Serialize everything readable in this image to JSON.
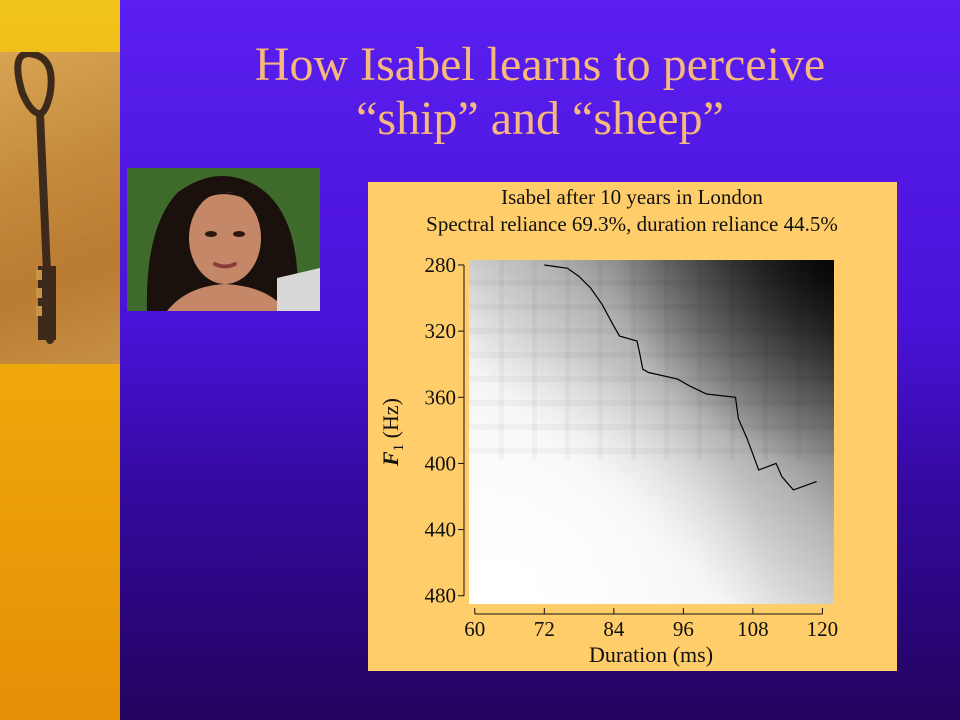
{
  "slide": {
    "title_line1": "How Isabel learns to perceive",
    "title_line2": "“ship” and “sheep”"
  },
  "images": {
    "left_image": "key-icon",
    "portrait": "person-portrait"
  },
  "colors": {
    "background": "#4a12d8",
    "left_strip": "#efa80c",
    "title": "#f6b87c",
    "chart_panel": "#ffcd6a"
  },
  "chart_data": {
    "type": "heatmap",
    "title_line1": "Isabel after 10 years in London",
    "title_line2": "Spectral reliance 69.3%, duration reliance 44.5%",
    "xlabel": "Duration (ms)",
    "ylabel_italic": "F",
    "ylabel_sub": "1",
    "ylabel_rest": " (Hz)",
    "xlim": [
      59,
      122
    ],
    "ylim": [
      277,
      485
    ],
    "y_inverted": true,
    "x_ticks": [
      60,
      72,
      84,
      96,
      108,
      120
    ],
    "y_ticks": [
      280,
      320,
      360,
      400,
      440,
      480
    ],
    "boundary_line": [
      [
        72,
        280
      ],
      [
        74,
        281
      ],
      [
        76,
        282
      ],
      [
        78,
        287
      ],
      [
        80,
        294
      ],
      [
        82,
        304
      ],
      [
        84,
        317
      ],
      [
        85,
        323
      ],
      [
        88,
        326
      ],
      [
        88.5,
        334
      ],
      [
        89,
        343
      ],
      [
        90,
        345
      ],
      [
        95,
        349
      ],
      [
        97,
        353
      ],
      [
        100,
        358
      ],
      [
        105,
        360
      ],
      [
        105.5,
        373
      ],
      [
        106,
        377
      ],
      [
        107,
        385
      ],
      [
        109,
        404
      ],
      [
        112,
        400
      ],
      [
        113,
        408
      ],
      [
        115,
        416
      ],
      [
        119,
        411
      ]
    ],
    "grid": false,
    "legend": "none"
  }
}
